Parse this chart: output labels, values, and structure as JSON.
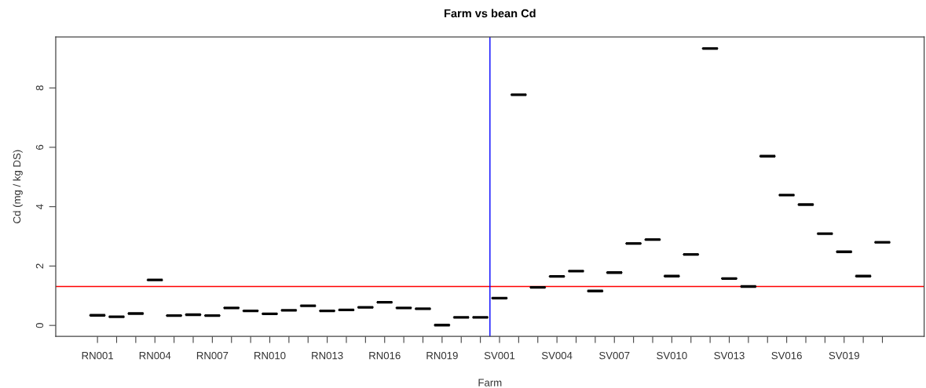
{
  "chart_data": {
    "type": "box",
    "title": "Farm vs bean Cd",
    "xlabel": "Farm",
    "ylabel": "Cd (mg / kg DS)",
    "categories": [
      "RN001",
      null,
      null,
      "RN004",
      null,
      null,
      "RN007",
      null,
      null,
      "RN010",
      null,
      null,
      "RN013",
      null,
      null,
      "RN016",
      null,
      null,
      "RN019",
      null,
      null,
      "SV001",
      null,
      null,
      "SV004",
      null,
      null,
      "SV007",
      null,
      null,
      "SV010",
      null,
      null,
      "SV013",
      null,
      null,
      "SV016",
      null,
      null,
      "SV019",
      null,
      null
    ],
    "series": [
      {
        "color": "#000000",
        "boxes": [
          {
            "low": 0.34,
            "q1": 0.34,
            "median": 0.34,
            "q3": 0.34,
            "high": 0.34
          },
          {
            "low": 0.29,
            "q1": 0.29,
            "median": 0.29,
            "q3": 0.29,
            "high": 0.29
          },
          {
            "low": 0.4,
            "q1": 0.4,
            "median": 0.4,
            "q3": 0.4,
            "high": 0.4
          },
          {
            "low": 1.53,
            "q1": 1.53,
            "median": 1.53,
            "q3": 1.53,
            "high": 1.53
          },
          {
            "low": 0.33,
            "q1": 0.33,
            "median": 0.33,
            "q3": 0.33,
            "high": 0.33
          },
          {
            "low": 0.36,
            "q1": 0.36,
            "median": 0.36,
            "q3": 0.36,
            "high": 0.36
          },
          {
            "low": 0.33,
            "q1": 0.33,
            "median": 0.33,
            "q3": 0.33,
            "high": 0.33
          },
          {
            "low": 0.59,
            "q1": 0.59,
            "median": 0.59,
            "q3": 0.59,
            "high": 0.59
          },
          {
            "low": 0.49,
            "q1": 0.49,
            "median": 0.49,
            "q3": 0.49,
            "high": 0.49
          },
          {
            "low": 0.39,
            "q1": 0.39,
            "median": 0.39,
            "q3": 0.39,
            "high": 0.39
          },
          {
            "low": 0.51,
            "q1": 0.51,
            "median": 0.51,
            "q3": 0.51,
            "high": 0.51
          },
          {
            "low": 0.66,
            "q1": 0.66,
            "median": 0.66,
            "q3": 0.66,
            "high": 0.66
          },
          {
            "low": 0.49,
            "q1": 0.49,
            "median": 0.49,
            "q3": 0.49,
            "high": 0.49
          },
          {
            "low": 0.52,
            "q1": 0.52,
            "median": 0.52,
            "q3": 0.52,
            "high": 0.52
          },
          {
            "low": 0.61,
            "q1": 0.61,
            "median": 0.61,
            "q3": 0.61,
            "high": 0.61
          },
          {
            "low": 0.78,
            "q1": 0.78,
            "median": 0.78,
            "q3": 0.78,
            "high": 0.78
          },
          {
            "low": 0.59,
            "q1": 0.59,
            "median": 0.59,
            "q3": 0.59,
            "high": 0.59
          },
          {
            "low": 0.56,
            "q1": 0.56,
            "median": 0.56,
            "q3": 0.56,
            "high": 0.56
          },
          {
            "low": 0.01,
            "q1": 0.01,
            "median": 0.01,
            "q3": 0.01,
            "high": 0.01
          },
          {
            "low": 0.27,
            "q1": 0.27,
            "median": 0.27,
            "q3": 0.27,
            "high": 0.27
          },
          {
            "low": 0.27,
            "q1": 0.27,
            "median": 0.27,
            "q3": 0.27,
            "high": 0.27
          },
          {
            "low": 0.92,
            "q1": 0.92,
            "median": 0.92,
            "q3": 0.92,
            "high": 0.92
          },
          {
            "low": 7.77,
            "q1": 7.77,
            "median": 7.77,
            "q3": 7.77,
            "high": 7.77
          },
          {
            "low": 1.28,
            "q1": 1.28,
            "median": 1.28,
            "q3": 1.28,
            "high": 1.28
          },
          {
            "low": 1.65,
            "q1": 1.65,
            "median": 1.65,
            "q3": 1.65,
            "high": 1.65
          },
          {
            "low": 1.83,
            "q1": 1.83,
            "median": 1.83,
            "q3": 1.83,
            "high": 1.83
          },
          {
            "low": 1.16,
            "q1": 1.16,
            "median": 1.16,
            "q3": 1.16,
            "high": 1.16
          },
          {
            "low": 1.78,
            "q1": 1.78,
            "median": 1.78,
            "q3": 1.78,
            "high": 1.78
          },
          {
            "low": 2.76,
            "q1": 2.76,
            "median": 2.76,
            "q3": 2.76,
            "high": 2.76
          },
          {
            "low": 2.89,
            "q1": 2.89,
            "median": 2.89,
            "q3": 2.89,
            "high": 2.89
          },
          {
            "low": 1.66,
            "q1": 1.66,
            "median": 1.66,
            "q3": 1.66,
            "high": 1.66
          },
          {
            "low": 2.39,
            "q1": 2.39,
            "median": 2.39,
            "q3": 2.39,
            "high": 2.39
          },
          {
            "low": 9.33,
            "q1": 9.33,
            "median": 9.33,
            "q3": 9.33,
            "high": 9.33
          },
          {
            "low": 1.58,
            "q1": 1.58,
            "median": 1.58,
            "q3": 1.58,
            "high": 1.58
          },
          {
            "low": 1.31,
            "q1": 1.31,
            "median": 1.31,
            "q3": 1.31,
            "high": 1.31
          },
          {
            "low": 5.7,
            "q1": 5.7,
            "median": 5.7,
            "q3": 5.7,
            "high": 5.7
          },
          {
            "low": 4.39,
            "q1": 4.39,
            "median": 4.39,
            "q3": 4.39,
            "high": 4.39
          },
          {
            "low": 4.07,
            "q1": 4.07,
            "median": 4.07,
            "q3": 4.07,
            "high": 4.07
          },
          {
            "low": 3.09,
            "q1": 3.09,
            "median": 3.09,
            "q3": 3.09,
            "high": 3.09
          },
          {
            "low": 2.48,
            "q1": 2.48,
            "median": 2.48,
            "q3": 2.48,
            "high": 2.48
          },
          {
            "low": 1.66,
            "q1": 1.66,
            "median": 1.66,
            "q3": 1.66,
            "high": 1.66
          },
          {
            "low": 2.8,
            "q1": 2.8,
            "median": 2.8,
            "q3": 2.8,
            "high": 2.8
          }
        ]
      }
    ],
    "ylim": [
      -0.37,
      9.72
    ],
    "yticks": [
      0,
      2,
      4,
      6,
      8
    ],
    "ref_lines": [
      {
        "axis": "y",
        "value": 1.31,
        "color": "#ff0000"
      }
    ]
  }
}
